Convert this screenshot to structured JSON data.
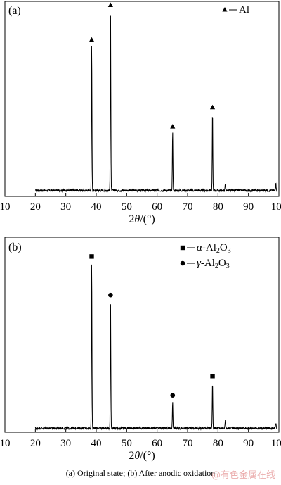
{
  "chart_data": [
    {
      "type": "line",
      "panel_label": "(a)",
      "xlabel": "2θ/(°)",
      "xlabel_parts": [
        "2",
        "θ",
        "/(°)"
      ],
      "xlim": [
        10,
        100
      ],
      "xticks": [
        10,
        20,
        30,
        40,
        50,
        60,
        70,
        80,
        90,
        100
      ],
      "y_axis_labels": false,
      "series": [
        {
          "name": "Al",
          "baseline": 0.02,
          "x_start": 20,
          "x_end": 99.5,
          "peaks": [
            {
              "x": 38.5,
              "y": 0.76
            },
            {
              "x": 44.7,
              "y": 0.93
            },
            {
              "x": 65.1,
              "y": 0.31
            },
            {
              "x": 78.2,
              "y": 0.41
            },
            {
              "x": 82.4,
              "y": 0.035
            },
            {
              "x": 99.0,
              "y": 0.045
            }
          ]
        }
      ],
      "markers": [
        {
          "symbol": "triangle",
          "x": 38.5,
          "y": 0.8
        },
        {
          "symbol": "triangle",
          "x": 44.7,
          "y": 0.98
        },
        {
          "symbol": "triangle",
          "x": 65.1,
          "y": 0.35
        },
        {
          "symbol": "triangle",
          "x": 78.2,
          "y": 0.45
        }
      ],
      "legend": [
        {
          "symbol": "triangle",
          "text": "Al"
        }
      ],
      "legend_position": "top-right"
    },
    {
      "type": "line",
      "panel_label": "(b)",
      "xlabel": "2θ/(°)",
      "xlabel_parts": [
        "2",
        "θ",
        "/(°)"
      ],
      "xlim": [
        10,
        100
      ],
      "xticks": [
        10,
        20,
        30,
        40,
        50,
        60,
        70,
        80,
        90,
        100
      ],
      "y_axis_labels": false,
      "series": [
        {
          "name": "",
          "baseline": 0.01,
          "x_start": 20,
          "x_end": 99.5,
          "peaks": [
            {
              "x": 38.5,
              "y": 0.87
            },
            {
              "x": 44.7,
              "y": 0.66
            },
            {
              "x": 65.1,
              "y": 0.14
            },
            {
              "x": 78.2,
              "y": 0.24
            },
            {
              "x": 82.4,
              "y": 0.045
            },
            {
              "x": 99.0,
              "y": 0.03
            }
          ]
        }
      ],
      "markers": [
        {
          "symbol": "square",
          "x": 38.5,
          "y": 0.9
        },
        {
          "symbol": "circle",
          "x": 44.7,
          "y": 0.7
        },
        {
          "symbol": "circle",
          "x": 65.1,
          "y": 0.18
        },
        {
          "symbol": "square",
          "x": 78.2,
          "y": 0.28
        }
      ],
      "legend": [
        {
          "symbol": "square",
          "greek": "α",
          "text": "-Al",
          "sub1": "2",
          "mid": "O",
          "sub2": "3"
        },
        {
          "symbol": "circle",
          "greek": "γ",
          "text": "-Al",
          "sub1": "2",
          "mid": "O",
          "sub2": "3"
        }
      ],
      "legend_position": "top-right"
    }
  ],
  "caption": "(a) Original state; (b) After anodic oxidation",
  "watermark": "@有色金属在线"
}
